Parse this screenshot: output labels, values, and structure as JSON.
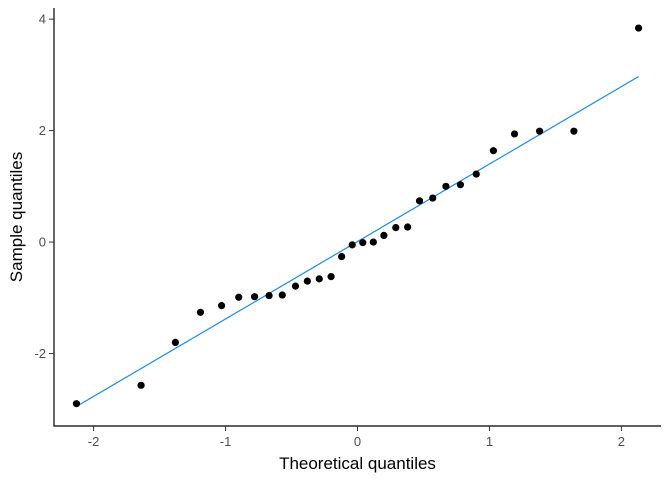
{
  "chart_data": {
    "type": "scatter",
    "xlabel": "Theoretical quantiles",
    "ylabel": "Sample quantiles",
    "xlim": [
      -2.3,
      2.3
    ],
    "ylim": [
      -3.3,
      4.2
    ],
    "x_ticks": [
      {
        "value": -2,
        "label": "-2"
      },
      {
        "value": -1,
        "label": "-1"
      },
      {
        "value": 0,
        "label": "0"
      },
      {
        "value": 1,
        "label": "1"
      },
      {
        "value": 2,
        "label": "2"
      }
    ],
    "y_ticks": [
      {
        "value": -2,
        "label": "-2"
      },
      {
        "value": 0,
        "label": "0"
      },
      {
        "value": 2,
        "label": "2"
      },
      {
        "value": 4,
        "label": "4"
      }
    ],
    "grid": false,
    "points": [
      {
        "x": -2.13,
        "y": -2.9
      },
      {
        "x": -1.64,
        "y": -2.57
      },
      {
        "x": -1.38,
        "y": -1.8
      },
      {
        "x": -1.19,
        "y": -1.26
      },
      {
        "x": -1.03,
        "y": -1.14
      },
      {
        "x": -0.9,
        "y": -0.99
      },
      {
        "x": -0.78,
        "y": -0.98
      },
      {
        "x": -0.67,
        "y": -0.96
      },
      {
        "x": -0.57,
        "y": -0.95
      },
      {
        "x": -0.47,
        "y": -0.79
      },
      {
        "x": -0.38,
        "y": -0.7
      },
      {
        "x": -0.29,
        "y": -0.66
      },
      {
        "x": -0.2,
        "y": -0.62
      },
      {
        "x": -0.12,
        "y": -0.26
      },
      {
        "x": -0.04,
        "y": -0.05
      },
      {
        "x": 0.04,
        "y": -0.01
      },
      {
        "x": 0.12,
        "y": 0.0
      },
      {
        "x": 0.2,
        "y": 0.12
      },
      {
        "x": 0.29,
        "y": 0.26
      },
      {
        "x": 0.38,
        "y": 0.27
      },
      {
        "x": 0.47,
        "y": 0.74
      },
      {
        "x": 0.57,
        "y": 0.79
      },
      {
        "x": 0.67,
        "y": 1.0
      },
      {
        "x": 0.78,
        "y": 1.03
      },
      {
        "x": 0.9,
        "y": 1.22
      },
      {
        "x": 1.03,
        "y": 1.64
      },
      {
        "x": 1.19,
        "y": 1.94
      },
      {
        "x": 1.38,
        "y": 1.99
      },
      {
        "x": 1.64,
        "y": 1.99
      },
      {
        "x": 2.13,
        "y": 3.84
      }
    ],
    "reference_line": {
      "x1": -2.13,
      "y1": -2.95,
      "x2": 2.13,
      "y2": 2.97,
      "color": "#1E88E5"
    },
    "point_color": "#000000"
  }
}
